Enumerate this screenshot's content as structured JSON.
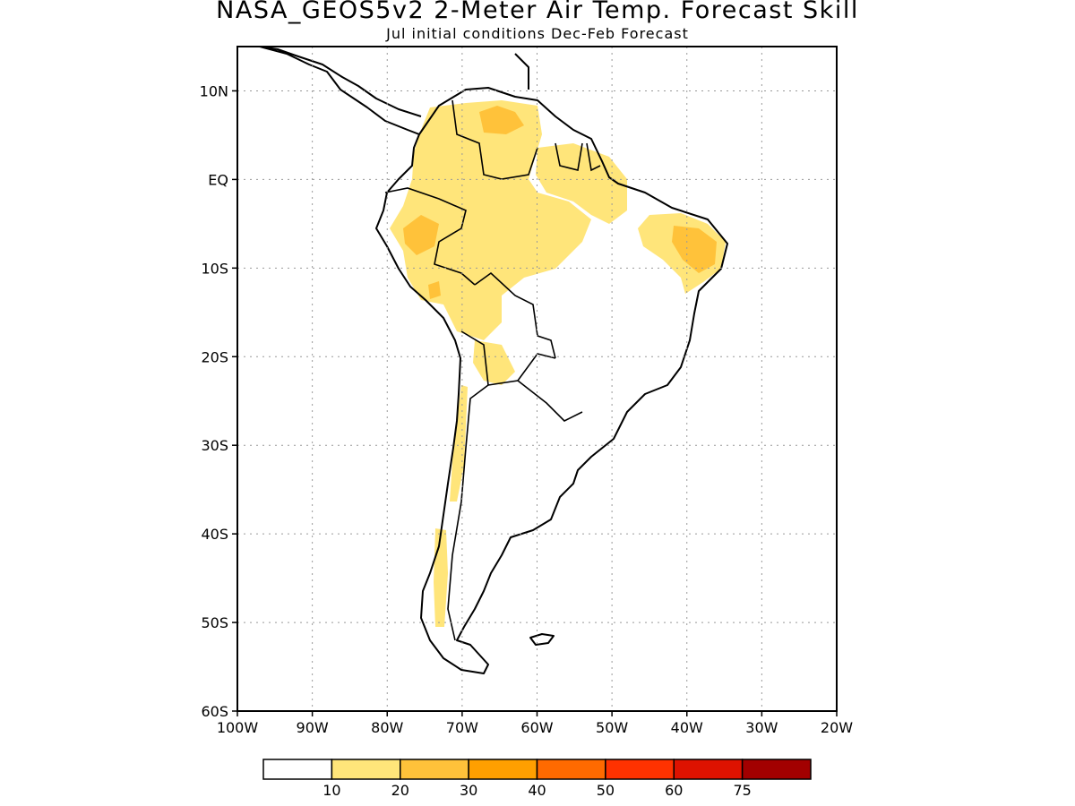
{
  "title": "NASA_GEOS5v2 2-Meter Air Temp. Forecast Skill",
  "subtitle": "Jul initial conditions  Dec-Feb Forecast",
  "lon_labels": [
    "100W",
    "90W",
    "80W",
    "70W",
    "60W",
    "50W",
    "40W",
    "30W",
    "20W"
  ],
  "lat_labels": [
    "10N",
    "EQ",
    "10S",
    "20S",
    "30S",
    "40S",
    "50S",
    "60S"
  ],
  "colorbar": {
    "labels": [
      "10",
      "20",
      "30",
      "40",
      "50",
      "60",
      "75"
    ],
    "colors": [
      "#ffffff",
      "#ffe57a",
      "#ffc23a",
      "#ff9f00",
      "#ff6a00",
      "#ff3200",
      "#de1200",
      "#a20000"
    ]
  },
  "map": {
    "lon_range": [
      -100,
      -20
    ],
    "lat_range": [
      -60,
      15
    ],
    "grid": "dotted",
    "land_outline": "#000000"
  }
}
